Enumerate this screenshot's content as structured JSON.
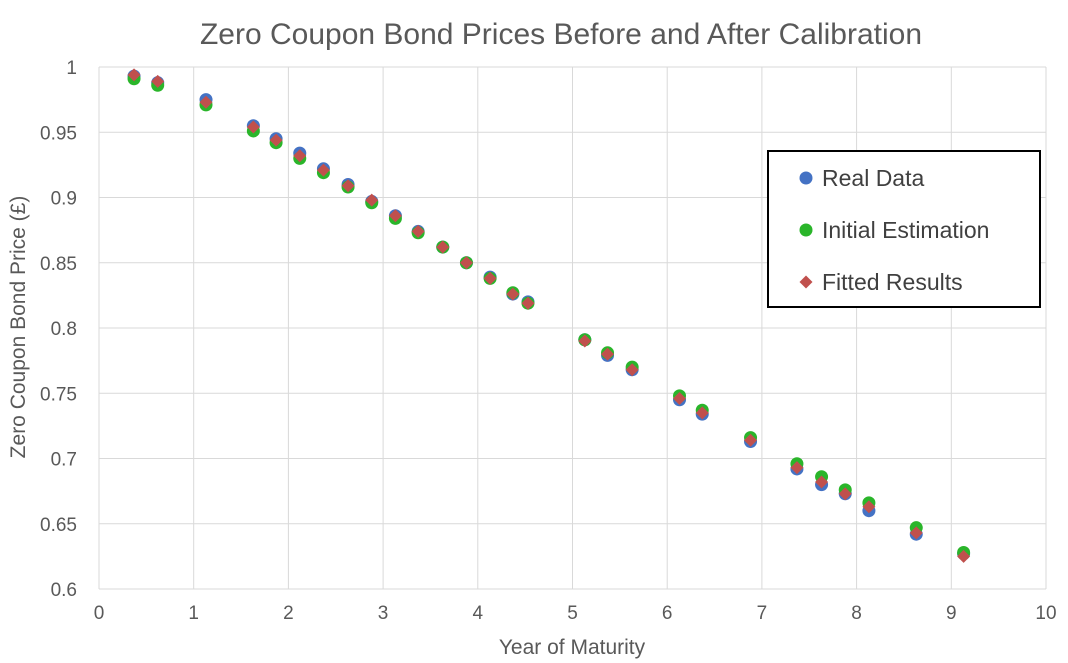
{
  "chart_data": {
    "type": "scatter",
    "title": "Zero Coupon Bond Prices Before and After Calibration",
    "xlabel": "Year of Maturity",
    "ylabel": "Zero Coupon Bond Price (£)",
    "xlim": [
      0,
      10
    ],
    "ylim": [
      0.6,
      1
    ],
    "x_ticks": [
      "0",
      "1",
      "2",
      "3",
      "4",
      "5",
      "6",
      "7",
      "8",
      "9",
      "10"
    ],
    "y_ticks": [
      "0.6",
      "0.65",
      "0.7",
      "0.75",
      "0.8",
      "0.85",
      "0.9",
      "0.95",
      "1"
    ],
    "grid": true,
    "legend_position": "right",
    "series": [
      {
        "name": "Real Data",
        "marker": "circle",
        "color": "#4472C4",
        "points": [
          [
            0.37,
            0.993
          ],
          [
            0.62,
            0.988
          ],
          [
            1.13,
            0.975
          ],
          [
            1.63,
            0.955
          ],
          [
            1.87,
            0.945
          ],
          [
            2.12,
            0.934
          ],
          [
            2.37,
            0.922
          ],
          [
            2.63,
            0.91
          ],
          [
            2.88,
            0.897
          ],
          [
            3.13,
            0.886
          ],
          [
            3.37,
            0.874
          ],
          [
            3.63,
            0.862
          ],
          [
            3.88,
            0.85
          ],
          [
            4.13,
            0.839
          ],
          [
            4.37,
            0.826
          ],
          [
            4.53,
            0.82
          ],
          [
            5.13,
            0.791
          ],
          [
            5.37,
            0.779
          ],
          [
            5.63,
            0.768
          ],
          [
            6.13,
            0.745
          ],
          [
            6.37,
            0.734
          ],
          [
            6.88,
            0.713
          ],
          [
            7.37,
            0.692
          ],
          [
            7.63,
            0.68
          ],
          [
            7.88,
            0.673
          ],
          [
            8.13,
            0.66
          ],
          [
            8.63,
            0.642
          ],
          [
            9.13,
            0.627
          ]
        ]
      },
      {
        "name": "Initial Estimation",
        "marker": "circle",
        "color": "#2AB52A",
        "points": [
          [
            0.37,
            0.991
          ],
          [
            0.62,
            0.986
          ],
          [
            1.13,
            0.971
          ],
          [
            1.63,
            0.951
          ],
          [
            1.87,
            0.942
          ],
          [
            2.12,
            0.93
          ],
          [
            2.37,
            0.919
          ],
          [
            2.63,
            0.908
          ],
          [
            2.88,
            0.896
          ],
          [
            3.13,
            0.884
          ],
          [
            3.37,
            0.873
          ],
          [
            3.63,
            0.862
          ],
          [
            3.88,
            0.85
          ],
          [
            4.13,
            0.838
          ],
          [
            4.37,
            0.827
          ],
          [
            4.53,
            0.819
          ],
          [
            5.13,
            0.791
          ],
          [
            5.37,
            0.781
          ],
          [
            5.63,
            0.77
          ],
          [
            6.13,
            0.748
          ],
          [
            6.37,
            0.737
          ],
          [
            6.88,
            0.716
          ],
          [
            7.37,
            0.696
          ],
          [
            7.63,
            0.686
          ],
          [
            7.88,
            0.676
          ],
          [
            8.13,
            0.666
          ],
          [
            8.63,
            0.647
          ],
          [
            9.13,
            0.628
          ]
        ]
      },
      {
        "name": "Fitted Results",
        "marker": "diamond",
        "color": "#C0504D",
        "points": [
          [
            0.37,
            0.994
          ],
          [
            0.62,
            0.989
          ],
          [
            1.13,
            0.973
          ],
          [
            1.63,
            0.954
          ],
          [
            1.87,
            0.944
          ],
          [
            2.12,
            0.932
          ],
          [
            2.37,
            0.921
          ],
          [
            2.63,
            0.909
          ],
          [
            2.88,
            0.898
          ],
          [
            3.13,
            0.886
          ],
          [
            3.37,
            0.874
          ],
          [
            3.63,
            0.862
          ],
          [
            3.88,
            0.85
          ],
          [
            4.13,
            0.838
          ],
          [
            4.37,
            0.826
          ],
          [
            4.53,
            0.819
          ],
          [
            5.13,
            0.79
          ],
          [
            5.37,
            0.78
          ],
          [
            5.63,
            0.768
          ],
          [
            6.13,
            0.746
          ],
          [
            6.37,
            0.735
          ],
          [
            6.88,
            0.714
          ],
          [
            7.37,
            0.693
          ],
          [
            7.63,
            0.682
          ],
          [
            7.88,
            0.673
          ],
          [
            8.13,
            0.663
          ],
          [
            8.63,
            0.643
          ],
          [
            9.13,
            0.625
          ]
        ]
      }
    ]
  }
}
